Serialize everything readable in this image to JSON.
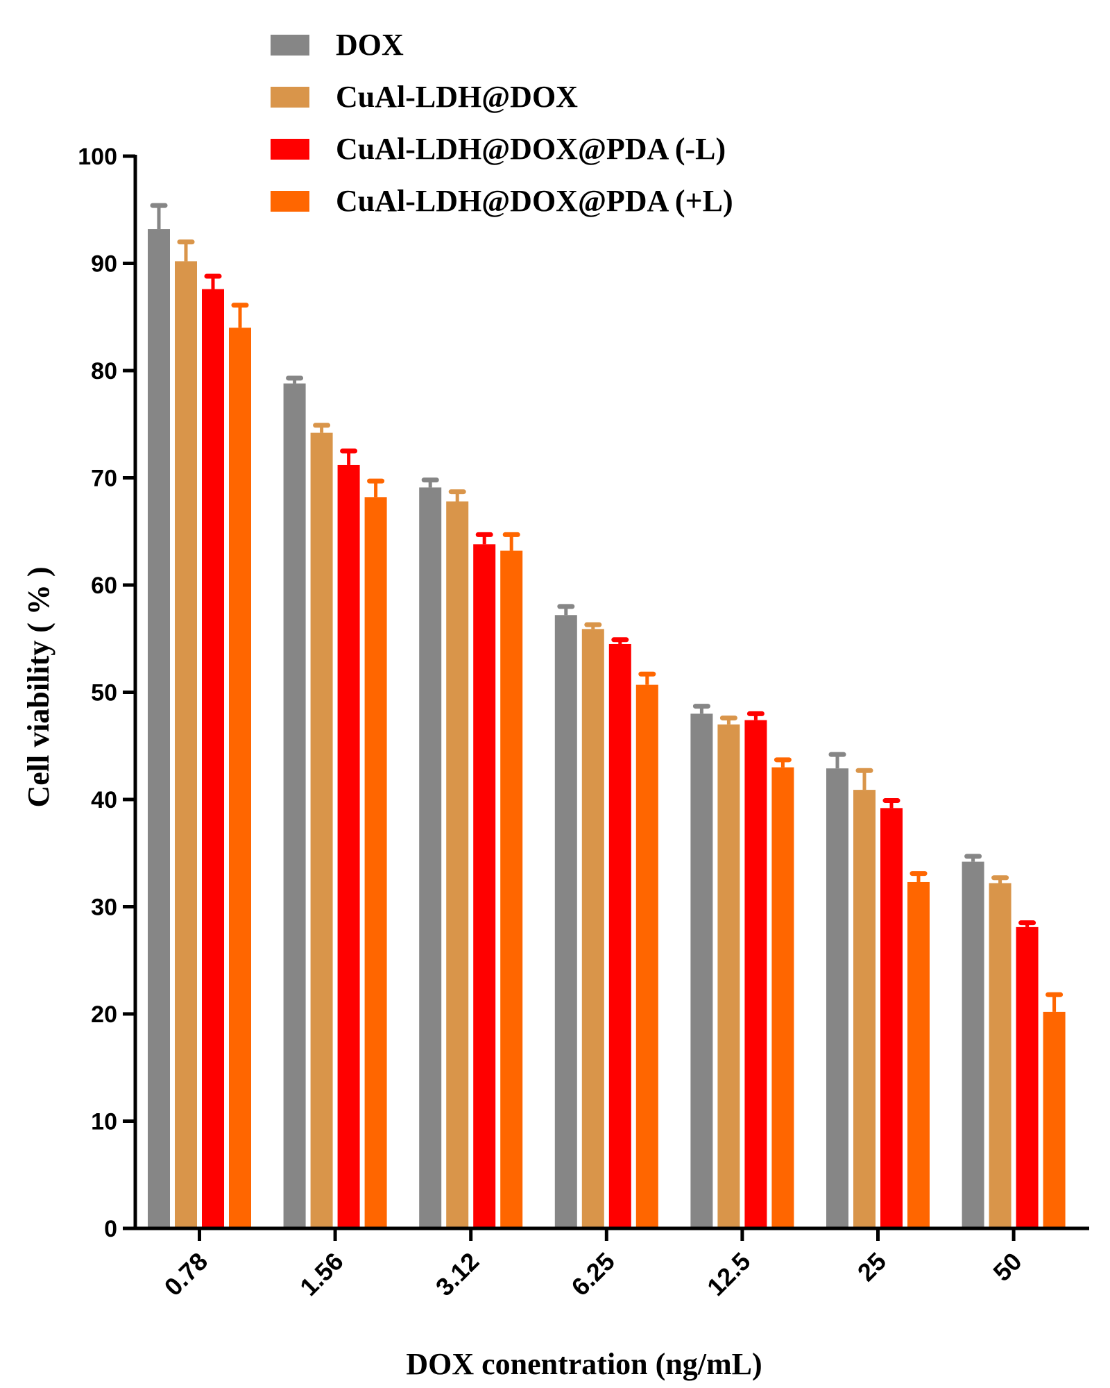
{
  "chart_data": {
    "type": "bar",
    "title": "",
    "xlabel": "DOX conentration (ng/mL)",
    "ylabel": "Cell viability ( % )",
    "ylim": [
      0,
      100
    ],
    "yticks": [
      0,
      10,
      20,
      30,
      40,
      50,
      60,
      70,
      80,
      90,
      100
    ],
    "categories": [
      "0.78",
      "1.56",
      "3.12",
      "6.25",
      "12.5",
      "25",
      "50"
    ],
    "series": [
      {
        "name": "DOX",
        "color": "#868686",
        "values": [
          93.2,
          78.8,
          69.1,
          57.2,
          48.0,
          42.9,
          34.2
        ],
        "errors": [
          2.2,
          0.5,
          0.7,
          0.8,
          0.7,
          1.3,
          0.5
        ]
      },
      {
        "name": "CuAl-LDH@DOX",
        "color": "#D9954A",
        "values": [
          90.2,
          74.2,
          67.8,
          55.9,
          47.0,
          40.9,
          32.2
        ],
        "errors": [
          1.8,
          0.7,
          0.9,
          0.4,
          0.6,
          1.8,
          0.5
        ]
      },
      {
        "name": "CuAl-LDH@DOX@PDA (-L)",
        "color": "#FF0000",
        "values": [
          87.6,
          71.2,
          63.8,
          54.5,
          47.4,
          39.2,
          28.1
        ],
        "errors": [
          1.2,
          1.3,
          0.9,
          0.4,
          0.6,
          0.7,
          0.4
        ]
      },
      {
        "name": "CuAl-LDH@DOX@PDA (+L)",
        "color": "#FF6600",
        "values": [
          84.0,
          68.2,
          63.2,
          50.7,
          43.0,
          32.3,
          20.2
        ],
        "errors": [
          2.1,
          1.5,
          1.5,
          1.0,
          0.7,
          0.8,
          1.6
        ]
      }
    ],
    "legend_position": "top"
  }
}
